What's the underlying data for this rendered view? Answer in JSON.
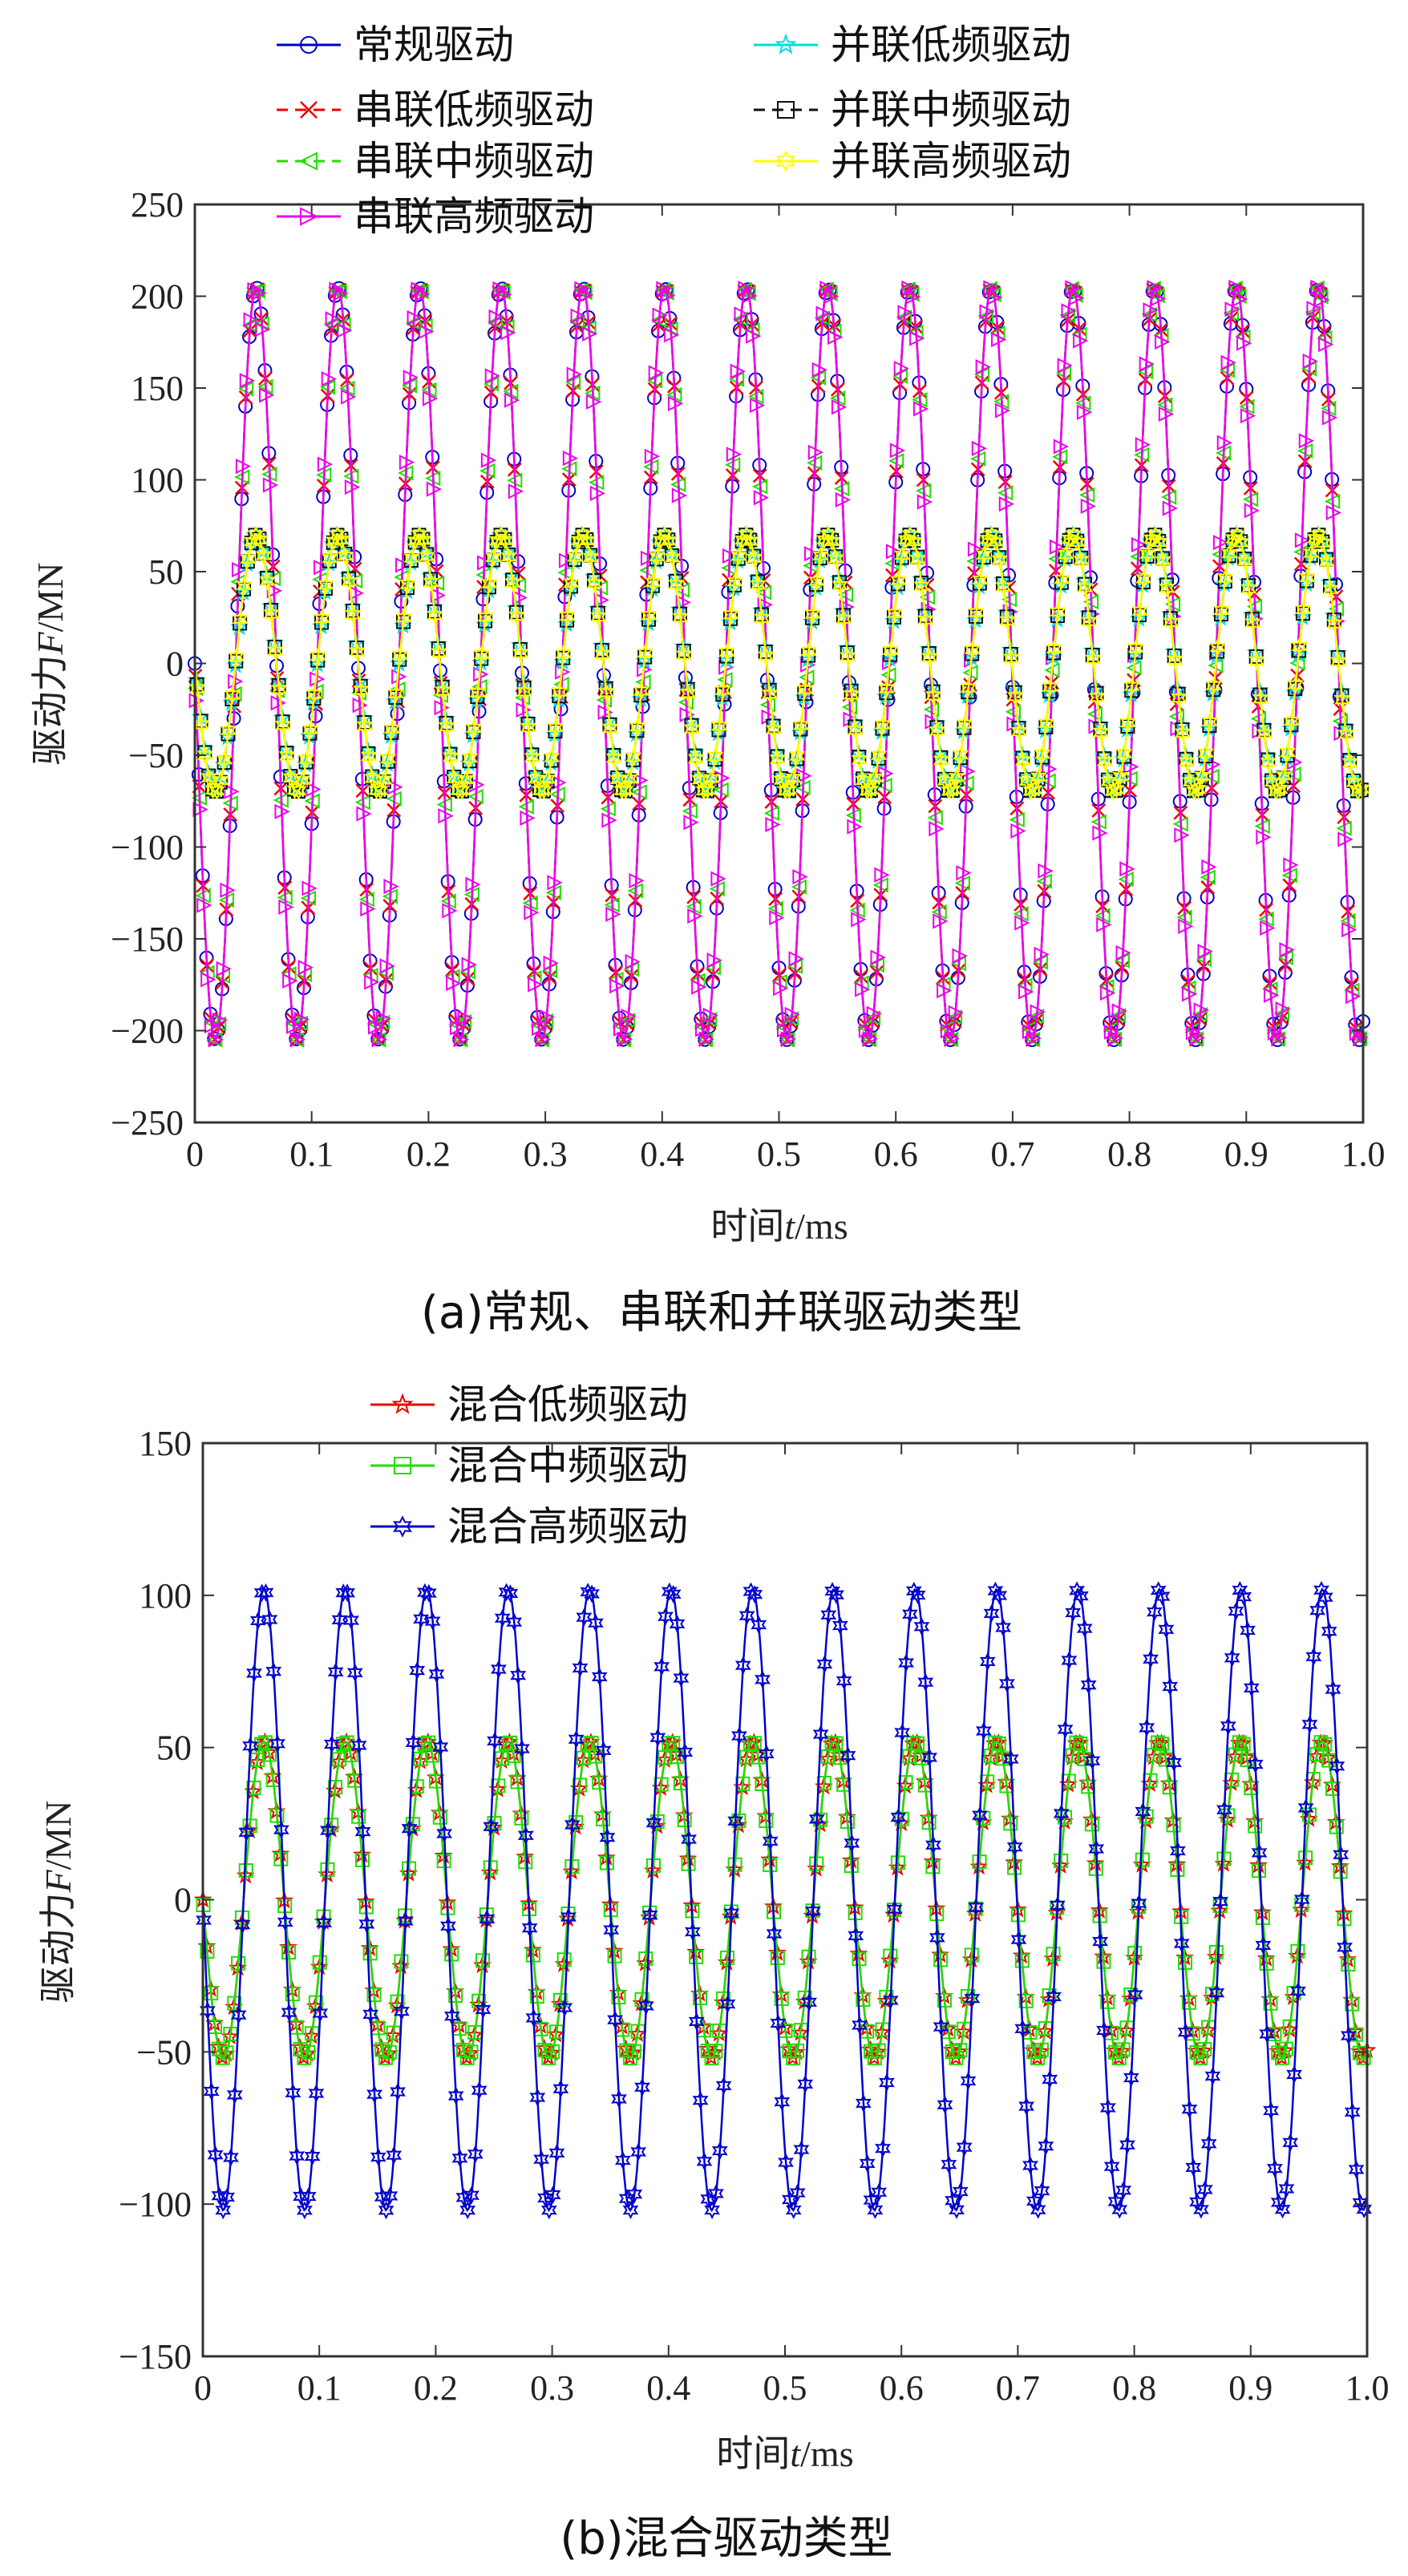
{
  "chart_data": [
    {
      "id": "a",
      "type": "line",
      "caption": "(a)常规、串联和并联驱动类型",
      "xlabel_prefix": "时间",
      "xlabel_var": "t",
      "xlabel_unit": "/ms",
      "ylabel_prefix": "驱动力",
      "ylabel_var": "F",
      "ylabel_unit": "/MN",
      "xlim": [
        0,
        1.0
      ],
      "ylim": [
        -250,
        250
      ],
      "x_ticks": [
        "0",
        "0.1",
        "0.2",
        "0.3",
        "0.4",
        "0.5",
        "0.6",
        "0.7",
        "0.8",
        "0.9",
        "1.0"
      ],
      "y_ticks": [
        "250",
        "200",
        "150",
        "100",
        "50",
        "0",
        "−50",
        "−100",
        "−150",
        "−200",
        "−250"
      ],
      "y_tick_values": [
        250,
        200,
        150,
        100,
        50,
        0,
        -50,
        -100,
        -150,
        -200,
        -250
      ],
      "grid": false,
      "legend_position": "top",
      "frequency_khz": 14.3,
      "series": [
        {
          "name": "常规驱动",
          "amplitude": 205,
          "color": "#0000cc",
          "marker": "circle",
          "dash": "solid"
        },
        {
          "name": "串联低频驱动",
          "amplitude": 205,
          "color": "#ee0000",
          "marker": "x",
          "dash": "dashed"
        },
        {
          "name": "串联中频驱动",
          "amplitude": 205,
          "color": "#22dd00",
          "marker": "triangle-left",
          "dash": "dashed"
        },
        {
          "name": "串联高频驱动",
          "amplitude": 205,
          "color": "#ee00ee",
          "marker": "triangle-right",
          "dash": "solid"
        },
        {
          "name": "并联低频驱动",
          "amplitude": 70,
          "color": "#00dddd",
          "marker": "star",
          "dash": "solid"
        },
        {
          "name": "并联中频驱动",
          "amplitude": 70,
          "color": "#111111",
          "marker": "square",
          "dash": "dashed"
        },
        {
          "name": "并联高频驱动",
          "amplitude": 70,
          "color": "#ffff00",
          "marker": "hexagram",
          "dash": "solid"
        }
      ]
    },
    {
      "id": "b",
      "type": "line",
      "caption": "(b)混合驱动类型",
      "xlabel_prefix": "时间",
      "xlabel_var": "t",
      "xlabel_unit": "/ms",
      "ylabel_prefix": "驱动力",
      "ylabel_var": "F",
      "ylabel_unit": "/MN",
      "xlim": [
        0,
        1.0
      ],
      "ylim": [
        -150,
        150
      ],
      "x_ticks": [
        "0",
        "0.1",
        "0.2",
        "0.3",
        "0.4",
        "0.5",
        "0.6",
        "0.7",
        "0.8",
        "0.9",
        "1.0"
      ],
      "y_ticks": [
        "150",
        "100",
        "50",
        "0",
        "−50",
        "−100",
        "−150"
      ],
      "y_tick_values": [
        150,
        100,
        50,
        0,
        -50,
        -100,
        -150
      ],
      "grid": false,
      "legend_position": "top",
      "frequency_khz": 14.3,
      "series": [
        {
          "name": "混合低频驱动",
          "amplitude": 52,
          "color": "#ee0000",
          "marker": "star",
          "dash": "solid"
        },
        {
          "name": "混合中频驱动",
          "amplitude": 52,
          "color": "#22dd00",
          "marker": "square",
          "dash": "solid"
        },
        {
          "name": "混合高频驱动",
          "amplitude": 102,
          "color": "#0000cc",
          "marker": "hexagram",
          "dash": "solid"
        }
      ]
    }
  ]
}
